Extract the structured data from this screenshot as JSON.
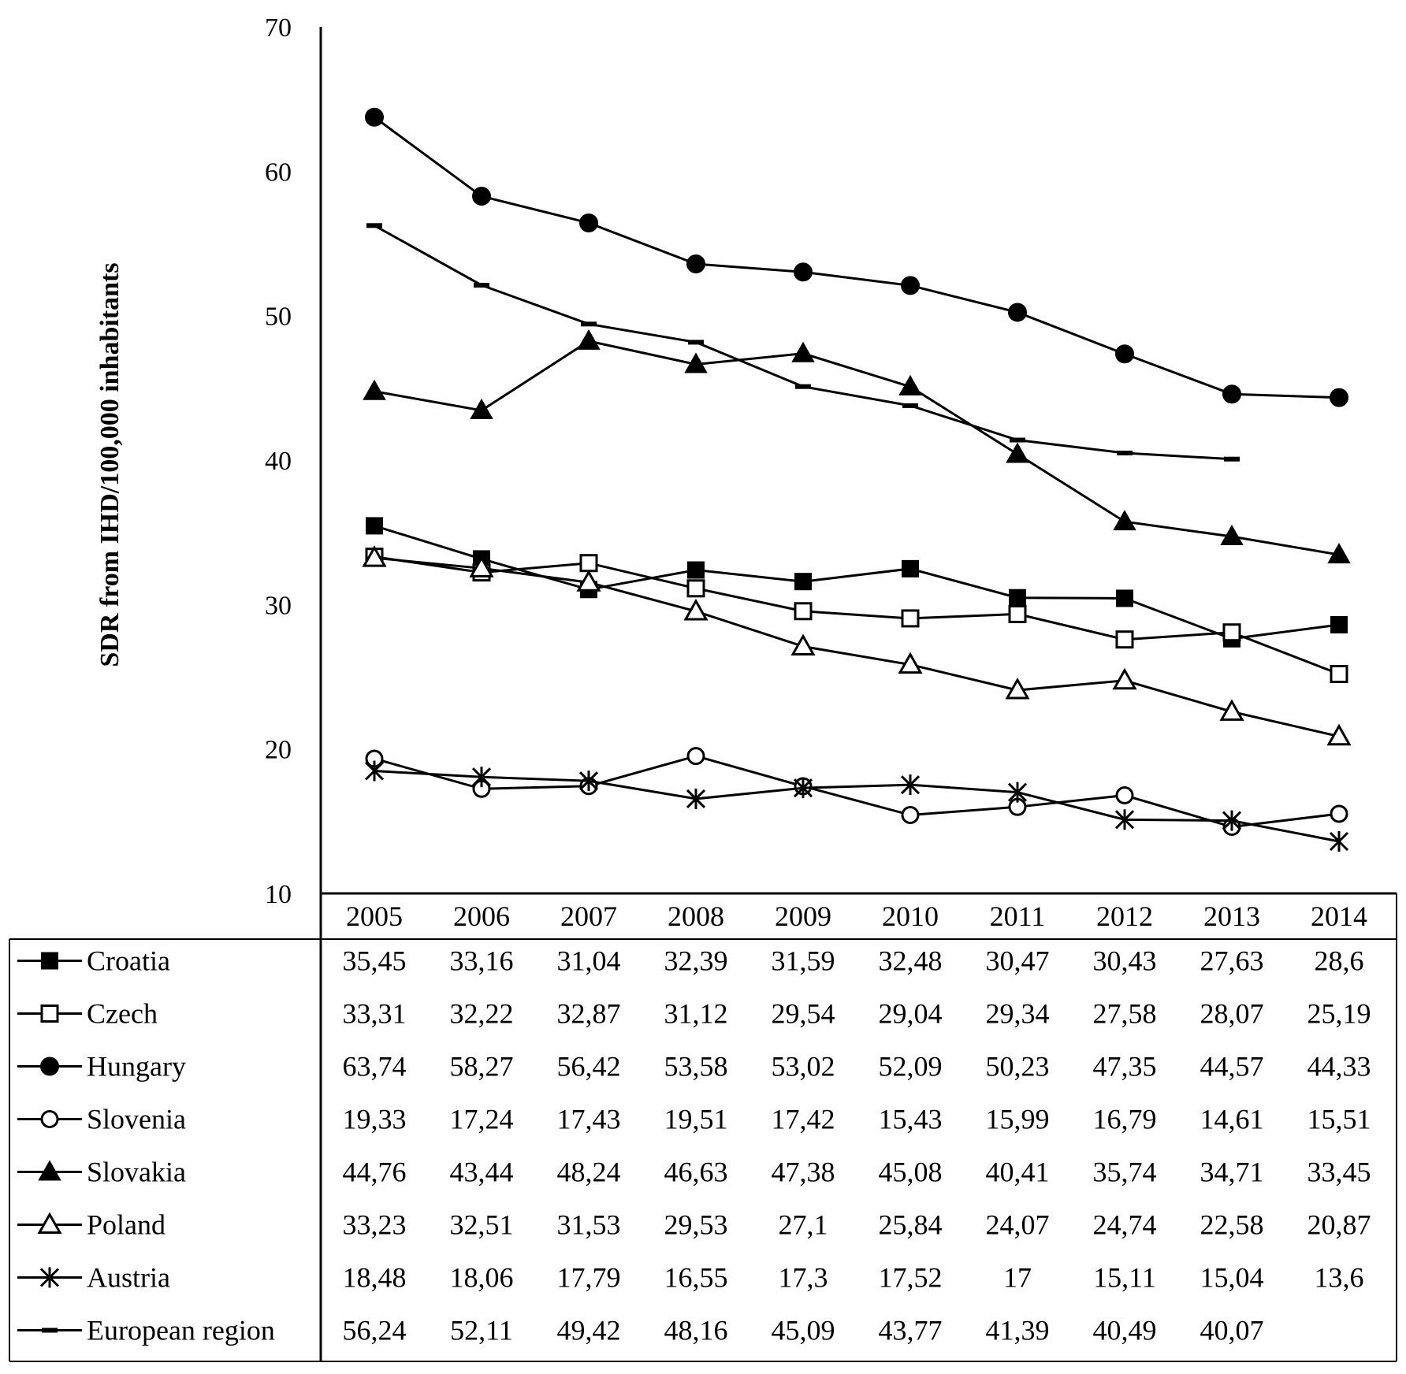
{
  "chart_data": {
    "type": "line",
    "title": "",
    "xlabel": "",
    "ylabel": "SDR from IHD/100,000 inhabitants",
    "ylim": [
      10,
      70
    ],
    "yticks": [
      "10",
      "20",
      "30",
      "40",
      "50",
      "60",
      "70"
    ],
    "grid": false,
    "legend_placement": "data table below plot",
    "categories": [
      "2005",
      "2006",
      "2007",
      "2008",
      "2009",
      "2010",
      "2011",
      "2012",
      "2013",
      "2014"
    ],
    "series": [
      {
        "name": "Croatia",
        "marker": "filled-square",
        "values": [
          35.45,
          33.16,
          31.04,
          32.39,
          31.59,
          32.48,
          30.47,
          30.43,
          27.63,
          28.6
        ],
        "labels": [
          "35,45",
          "33,16",
          "31,04",
          "32,39",
          "31,59",
          "32,48",
          "30,47",
          "30,43",
          "27,63",
          "28,6"
        ]
      },
      {
        "name": "Czech",
        "marker": "open-square",
        "values": [
          33.31,
          32.22,
          32.87,
          31.12,
          29.54,
          29.04,
          29.34,
          27.58,
          28.07,
          25.19
        ],
        "labels": [
          "33,31",
          "32,22",
          "32,87",
          "31,12",
          "29,54",
          "29,04",
          "29,34",
          "27,58",
          "28,07",
          "25,19"
        ]
      },
      {
        "name": "Hungary",
        "marker": "filled-circle",
        "values": [
          63.74,
          58.27,
          56.42,
          53.58,
          53.02,
          52.09,
          50.23,
          47.35,
          44.57,
          44.33
        ],
        "labels": [
          "63,74",
          "58,27",
          "56,42",
          "53,58",
          "53,02",
          "52,09",
          "50,23",
          "47,35",
          "44,57",
          "44,33"
        ]
      },
      {
        "name": "Slovenia",
        "marker": "open-circle",
        "values": [
          19.33,
          17.24,
          17.43,
          19.51,
          17.42,
          15.43,
          15.99,
          16.79,
          14.61,
          15.51
        ],
        "labels": [
          "19,33",
          "17,24",
          "17,43",
          "19,51",
          "17,42",
          "15,43",
          "15,99",
          "16,79",
          "14,61",
          "15,51"
        ]
      },
      {
        "name": "Slovakia",
        "marker": "filled-triangle",
        "values": [
          44.76,
          43.44,
          48.24,
          46.63,
          47.38,
          45.08,
          40.41,
          35.74,
          34.71,
          33.45
        ],
        "labels": [
          "44,76",
          "43,44",
          "48,24",
          "46,63",
          "47,38",
          "45,08",
          "40,41",
          "35,74",
          "34,71",
          "33,45"
        ]
      },
      {
        "name": "Poland",
        "marker": "open-triangle",
        "values": [
          33.23,
          32.51,
          31.53,
          29.53,
          27.1,
          25.84,
          24.07,
          24.74,
          22.58,
          20.87
        ],
        "labels": [
          "33,23",
          "32,51",
          "31,53",
          "29,53",
          "27,1",
          "25,84",
          "24,07",
          "24,74",
          "22,58",
          "20,87"
        ]
      },
      {
        "name": "Austria",
        "marker": "star",
        "values": [
          18.48,
          18.06,
          17.79,
          16.55,
          17.3,
          17.52,
          17,
          15.11,
          15.04,
          13.6
        ],
        "labels": [
          "18,48",
          "18,06",
          "17,79",
          "16,55",
          "17,3",
          "17,52",
          "17",
          "15,11",
          "15,04",
          "13,6"
        ]
      },
      {
        "name": "European region",
        "marker": "dash",
        "values": [
          56.24,
          52.11,
          49.42,
          48.16,
          45.09,
          43.77,
          41.39,
          40.49,
          40.07,
          null
        ],
        "labels": [
          "56,24",
          "52,11",
          "49,42",
          "48,16",
          "45,09",
          "43,77",
          "41,39",
          "40,49",
          "40,07",
          ""
        ]
      }
    ]
  }
}
